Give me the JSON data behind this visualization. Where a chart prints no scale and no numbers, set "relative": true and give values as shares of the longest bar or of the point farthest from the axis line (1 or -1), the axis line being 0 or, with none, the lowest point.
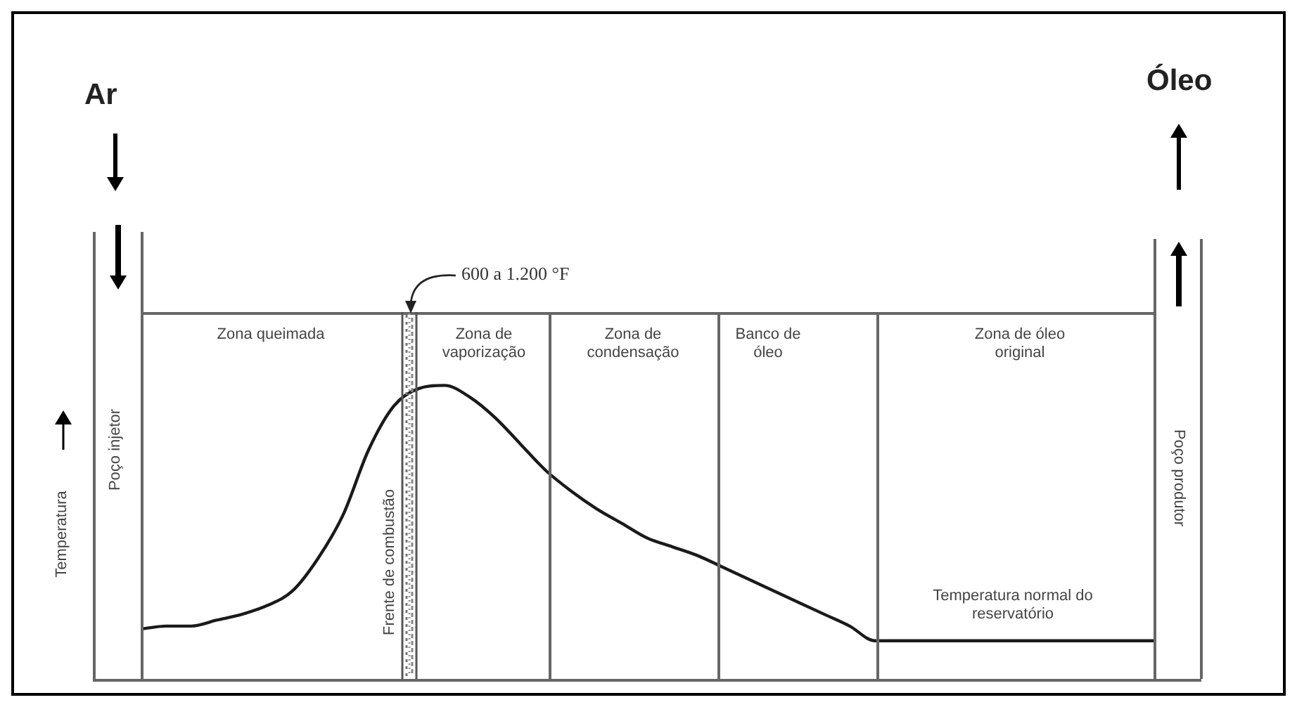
{
  "chart_data": {
    "type": "line",
    "relative": true,
    "ylabel": "Temperatura",
    "categories": [
      null,
      null,
      null,
      null,
      null,
      null,
      null,
      null,
      null,
      null,
      null,
      null,
      null,
      null,
      null,
      null,
      null,
      null,
      null,
      null,
      null,
      null,
      null,
      null,
      null,
      null,
      null,
      null,
      null,
      null,
      null,
      null,
      null,
      null,
      null,
      null,
      null,
      null,
      null,
      null,
      null
    ],
    "series": [
      {
        "color": "#1a1a1a",
        "values": [
          0.17,
          0.18,
          0.18,
          0.2,
          0.22,
          0.25,
          0.3,
          0.41,
          0.56,
          0.78,
          0.93,
          0.99,
          1,
          0.96,
          0.89,
          0.8,
          0.71,
          0.64,
          0.58,
          0.53,
          0.48,
          0.45,
          0.42,
          0.38,
          0.34,
          0.3,
          0.26,
          0.22,
          0.18,
          0.13,
          0.13,
          0.13,
          0.13,
          0.13,
          0.13,
          0.13,
          0.13,
          0.13,
          0.13,
          0.13,
          0.13
        ]
      }
    ],
    "annotations": [
      "Ar",
      "Óleo",
      "600 a 1.200 °F",
      "Zona queimada",
      "Zona de vaporização",
      "Zona de condensação",
      "Banco de óleo",
      "Zona de óleo original",
      "Temperatura normal do reservatório",
      "Frente de combustão",
      "Poço injetor",
      "Poço produtor"
    ]
  }
}
